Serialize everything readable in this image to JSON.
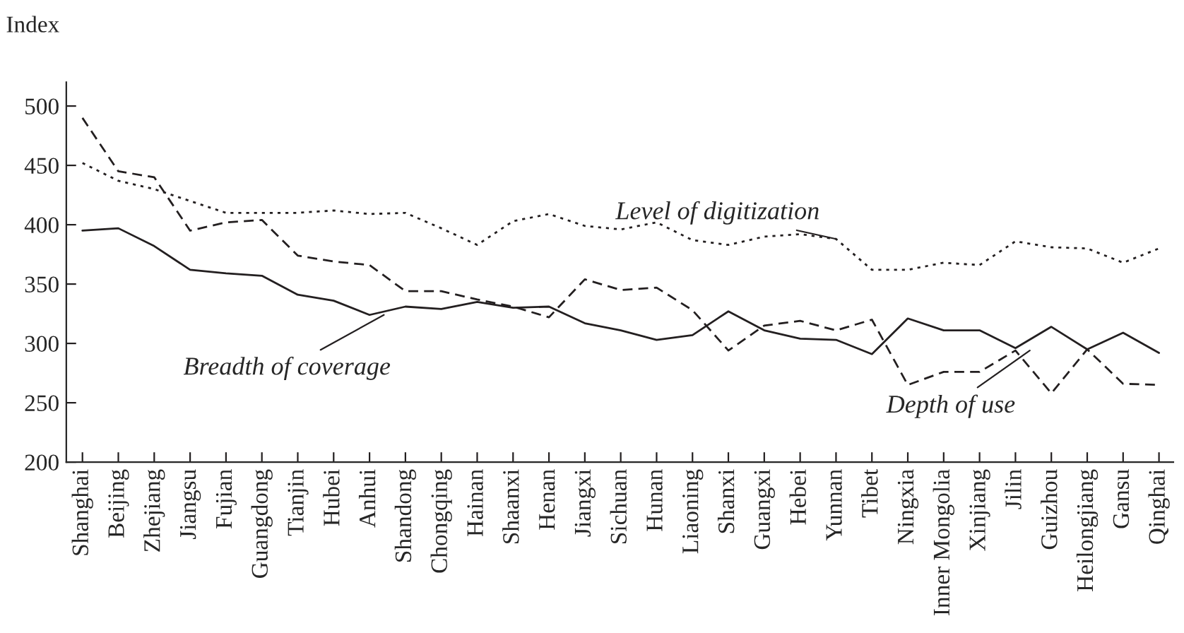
{
  "chart_data": {
    "type": "line",
    "ylabel": "Index",
    "categories": [
      "Shanghai",
      "Beijing",
      "Zhejiang",
      "Jiangsu",
      "Fujian",
      "Guangdong",
      "Tianjin",
      "Hubei",
      "Anhui",
      "Shandong",
      "Chongqing",
      "Hainan",
      "Shaanxi",
      "Henan",
      "Jiangxi",
      "Sichuan",
      "Hunan",
      "Liaoning",
      "Shanxi",
      "Guangxi",
      "Hebei",
      "Yunnan",
      "Tibet",
      "Ningxia",
      "Inner Mongolia",
      "Xinjiang",
      "Jilin",
      "Guizhou",
      "Heilongjiang",
      "Gansu",
      "Qinghai"
    ],
    "series": [
      {
        "color": "#231f20",
        "line_style": "solid",
        "values": [
          395,
          397,
          382,
          362,
          359,
          357,
          341,
          336,
          324,
          331,
          329,
          335,
          330,
          331,
          317,
          311,
          303,
          307,
          327,
          311,
          304,
          303,
          291,
          321,
          311,
          311,
          296,
          314,
          295,
          309,
          292
        ]
      },
      {
        "color": "#231f20",
        "line_style": "dashed",
        "values": [
          490,
          445,
          440,
          395,
          402,
          404,
          374,
          369,
          366,
          344,
          344,
          337,
          331,
          322,
          354,
          345,
          347,
          328,
          294,
          315,
          319,
          311,
          320,
          265,
          276,
          276,
          294,
          258,
          295,
          266,
          265
        ]
      },
      {
        "color": "#231f20",
        "line_style": "dotted",
        "values": [
          452,
          437,
          430,
          420,
          410,
          410,
          410,
          412,
          409,
          410,
          397,
          383,
          403,
          409,
          399,
          396,
          402,
          387,
          383,
          390,
          392,
          388,
          362,
          362,
          368,
          366,
          386,
          381,
          380,
          368,
          380
        ]
      }
    ],
    "annotations": [
      {
        "text": "Breadth of coverage",
        "x": "Anhui",
        "y": 324
      },
      {
        "text": "Level of digitization",
        "x": "Yunnan",
        "y": 388
      },
      {
        "text": "Depth of use",
        "x": "Jilin",
        "y": 294
      }
    ],
    "ylim": [
      200,
      520
    ],
    "yticks": [
      200,
      250,
      300,
      350,
      400,
      450,
      500
    ],
    "grid": false,
    "legend": false,
    "marker": "none"
  }
}
